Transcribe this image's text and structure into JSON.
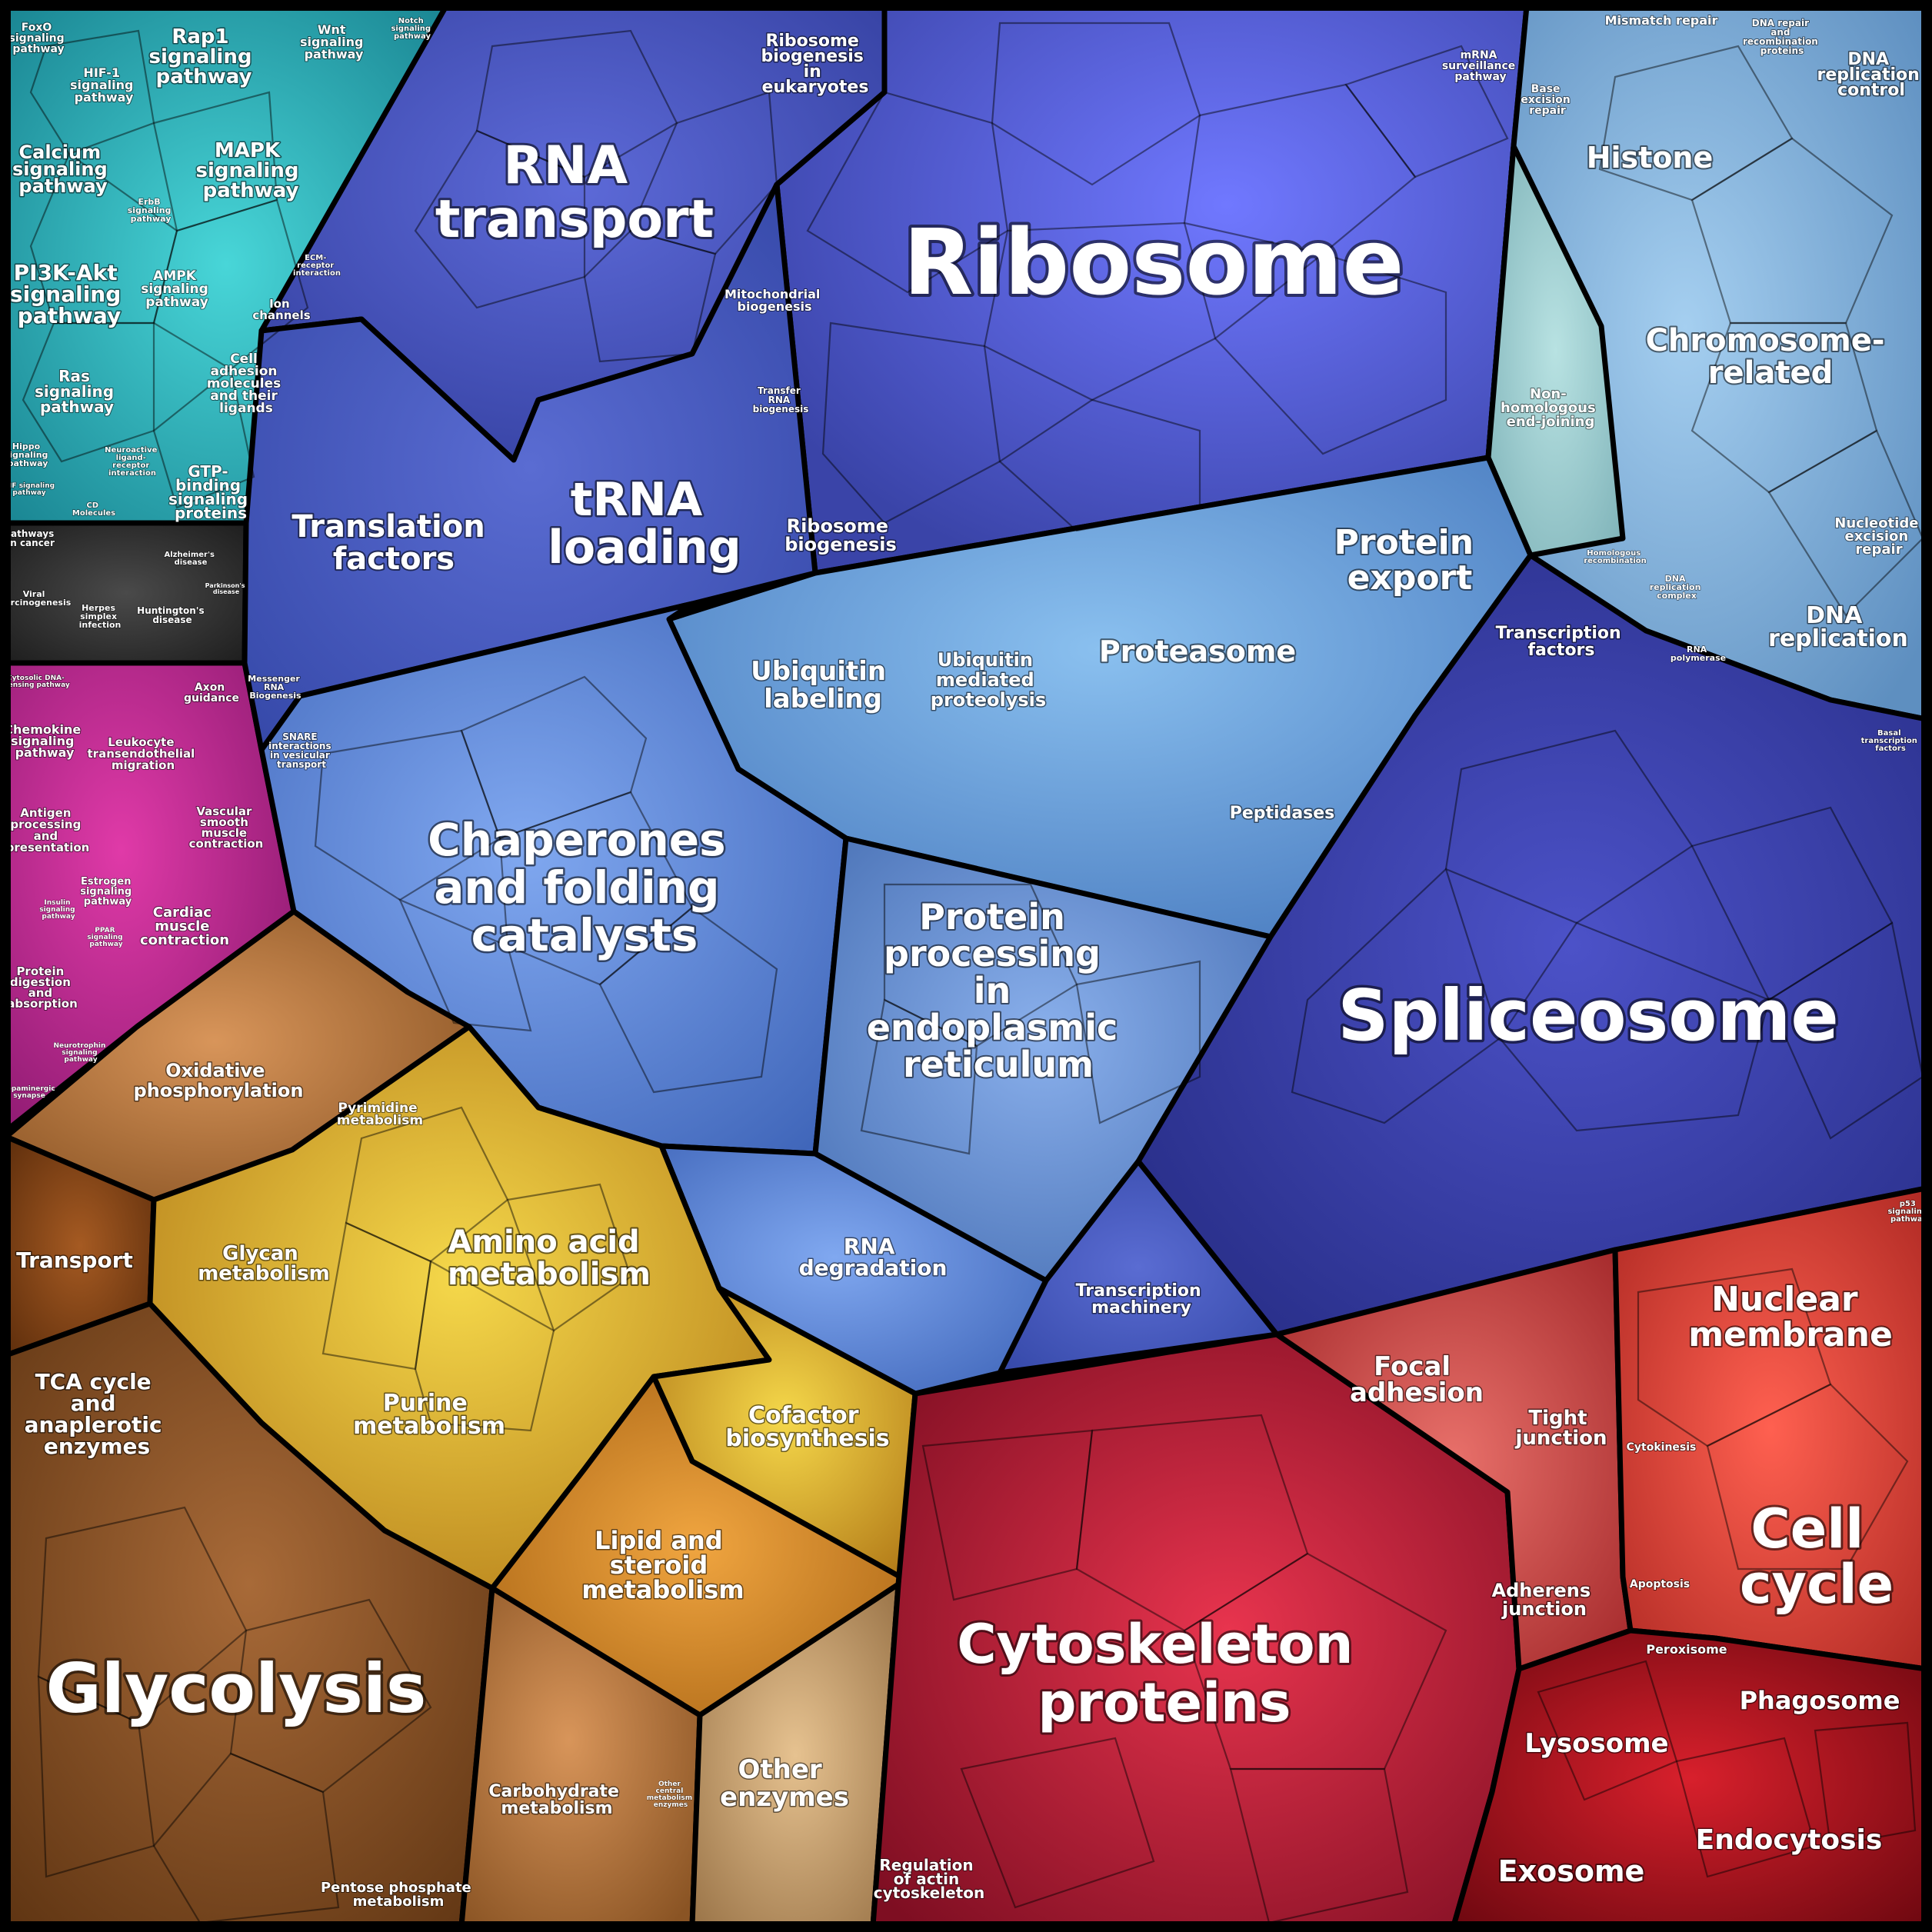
{
  "labels": {
    "ribosome": "Ribosome",
    "rna_transport": [
      "RNA",
      "transport"
    ],
    "ribosome_biogenesis_euk": [
      "Ribosome",
      "biogenesis",
      "in",
      "eukaryotes"
    ],
    "mitochondrial_biogenesis": [
      "Mitochondrial",
      "biogenesis"
    ],
    "transfer_rna_biogenesis": [
      "Transfer",
      "RNA",
      "biogenesis"
    ],
    "mrna_surveillance": [
      "mRNA",
      "surveillance",
      "pathway"
    ],
    "translation_factors": [
      "Translation",
      "factors"
    ],
    "trna_loading": [
      "tRNA",
      "loading"
    ],
    "ribosome_biogenesis": [
      "Ribosome",
      "biogenesis"
    ],
    "messenger_rna_biogenesis": [
      "Messenger",
      "RNA",
      "Biogenesis"
    ],
    "histone": "Histone",
    "mismatch_repair": "Mismatch repair",
    "dna_repair_recombination": [
      "DNA repair",
      "and",
      "recombination",
      "proteins"
    ],
    "dna_replication_control": [
      "DNA",
      "replication",
      "control"
    ],
    "base_excision_repair": [
      "Base",
      "excision",
      "repair"
    ],
    "chromosome_related": [
      "Chromosome-",
      "related"
    ],
    "non_homologous": [
      "Non-",
      "homologous",
      "end-joining"
    ],
    "nucleotide_excision_repair": [
      "Nucleotide",
      "excision",
      "repair"
    ],
    "dna_replication": [
      "DNA",
      "replication"
    ],
    "homologous_recombination": [
      "Homologous",
      "recombination"
    ],
    "dna_replication_complex": [
      "DNA",
      "replication",
      "complex"
    ],
    "protein_export": [
      "Protein",
      "export"
    ],
    "proteasome": "Proteasome",
    "ubiquitin_labeling": [
      "Ubiquitin",
      "labeling"
    ],
    "ubiquitin_mediated": [
      "Ubiquitin",
      "mediated",
      "proteolysis"
    ],
    "peptidases": "Peptidases",
    "chaperones": [
      "Chaperones",
      "and folding",
      "catalysts"
    ],
    "protein_processing_er": [
      "Protein",
      "processing",
      "in",
      "endoplasmic",
      "reticulum"
    ],
    "snare": [
      "SNARE",
      "interactions",
      "in vesicular",
      "transport"
    ],
    "rna_degradation": [
      "RNA",
      "degradation"
    ],
    "transcription_factors": [
      "Transcription",
      "factors"
    ],
    "rna_polymerase": [
      "RNA",
      "polymerase"
    ],
    "basal_transcription_factors": [
      "Basal",
      "transcription",
      "factors"
    ],
    "spliceosome": "Spliceosome",
    "transcription_machinery": [
      "Transcription",
      "machinery"
    ],
    "foxo": [
      "FoxO",
      "signaling",
      "pathway"
    ],
    "rap1": [
      "Rap1",
      "signaling",
      "pathway"
    ],
    "wnt": [
      "Wnt",
      "signaling",
      "pathway"
    ],
    "notch": [
      "Notch",
      "signaling",
      "pathway"
    ],
    "hif1": [
      "HIF-1",
      "signaling",
      "pathway"
    ],
    "calcium": [
      "Calcium",
      "signaling",
      "pathway"
    ],
    "mapk": [
      "MAPK",
      "signaling",
      "pathway"
    ],
    "erbb": [
      "ErbB",
      "signaling",
      "pathway"
    ],
    "pi3k": [
      "PI3K-Akt",
      "signaling",
      "pathway"
    ],
    "ampk": [
      "AMPK",
      "signaling",
      "pathway"
    ],
    "ecm_receptor": [
      "ECM-",
      "receptor",
      "interaction"
    ],
    "ion_channels": [
      "Ion",
      "channels"
    ],
    "ras": [
      "Ras",
      "signaling",
      "pathway"
    ],
    "cell_adhesion_molecules": [
      "Cell",
      "adhesion",
      "molecules",
      "and their",
      "ligands"
    ],
    "neuroactive": [
      "Neuroactive",
      "ligand-",
      "receptor",
      "interaction"
    ],
    "hippo": [
      "Hippo",
      "signaling",
      "pathway"
    ],
    "tnf": [
      "TNF signaling",
      "pathway"
    ],
    "cd_molecules": [
      "CD",
      "Molecules"
    ],
    "gtp_binding": [
      "GTP-",
      "binding",
      "signaling",
      "proteins"
    ],
    "pathways_in_cancer": [
      "Pathways",
      "in cancer"
    ],
    "alzheimers": [
      "Alzheimer's",
      "disease"
    ],
    "parkinsons": [
      "Parkinson's",
      "disease"
    ],
    "viral_carcinogenesis": [
      "Viral",
      "carcinogenesis"
    ],
    "herpes": [
      "Herpes",
      "simplex",
      "infection"
    ],
    "huntingtons": [
      "Huntington's",
      "disease"
    ],
    "cytosolic_dna": [
      "Cytosolic DNA-",
      "sensing pathway"
    ],
    "axon_guidance": [
      "Axon",
      "guidance"
    ],
    "chemokine": [
      "Chemokine",
      "signaling",
      "pathway"
    ],
    "leukocyte": [
      "Leukocyte",
      "transendothelial",
      "migration"
    ],
    "antigen": [
      "Antigen",
      "processing",
      "and",
      "presentation"
    ],
    "vascular": [
      "Vascular",
      "smooth",
      "muscle",
      "contraction"
    ],
    "estrogen": [
      "Estrogen",
      "signaling",
      "pathway"
    ],
    "insulin": [
      "Insulin",
      "signaling",
      "pathway"
    ],
    "cardiac": [
      "Cardiac",
      "muscle",
      "contraction"
    ],
    "ppar": [
      "PPAR",
      "signaling",
      "pathway"
    ],
    "protein_digestion": [
      "Protein",
      "digestion",
      "and",
      "absorption"
    ],
    "neurotrophin": [
      "Neurotrophin",
      "signaling",
      "pathway"
    ],
    "dopaminergic": [
      "Dopaminergic",
      "synapse"
    ],
    "oxidative_phosphorylation": [
      "Oxidative",
      "phosphorylation"
    ],
    "pyrimidine": [
      "Pyrimidine",
      "metabolism"
    ],
    "transport": "Transport",
    "glycan": [
      "Glycan",
      "metabolism"
    ],
    "amino_acid": [
      "Amino acid",
      "metabolism"
    ],
    "tca": [
      "TCA cycle",
      "and",
      "anaplerotic",
      "enzymes"
    ],
    "purine": [
      "Purine",
      "metabolism"
    ],
    "cofactor": [
      "Cofactor",
      "biosynthesis"
    ],
    "lipid": [
      "Lipid and",
      "steroid",
      "metabolism"
    ],
    "glycolysis": "Glycolysis",
    "carbohydrate": [
      "Carbohydrate",
      "metabolism"
    ],
    "other_central": [
      "Other",
      "central",
      "metabolism",
      "enzymes"
    ],
    "other_enzymes": [
      "Other",
      "enzymes"
    ],
    "pentose": [
      "Pentose phosphate",
      "metabolism"
    ],
    "focal_adhesion": [
      "Focal",
      "adhesion"
    ],
    "tight_junction": [
      "Tight",
      "junction"
    ],
    "nuclear_membrane": [
      "Nuclear",
      "membrane"
    ],
    "cytokinesis": "Cytokinesis",
    "cell_cycle": [
      "Cell",
      "cycle"
    ],
    "adherens_junction": [
      "Adherens",
      "junction"
    ],
    "apoptosis": "Apoptosis",
    "peroxisome": "Peroxisome",
    "phagosome": "Phagosome",
    "lysosome": "Lysosome",
    "cytoskeleton": [
      "Cytoskeleton",
      "proteins"
    ],
    "endocytosis": "Endocytosis",
    "exosome": "Exosome",
    "regulation_actin": [
      "Regulation",
      "of actin",
      "cytoskeleton"
    ],
    "p53": [
      "p53",
      "signaling",
      "pathway"
    ]
  },
  "colors": {
    "ribosome": "#4a55c4",
    "rna_group": "#4c5ec8",
    "translation": "#4a62c8",
    "dna_group": "#7eaed8",
    "non_homologous": "#a9d4d6",
    "proteasome_group": "#5f95d8",
    "chaperones": "#5a86d8",
    "protein_processing": "#5889cf",
    "rna_degradation": "#4d7cc0",
    "spliceosome": "#3a3fa3",
    "transcription_machinery": "#4747b4",
    "signaling": "#27a8b8",
    "disease": "#333333",
    "immune": "#c02a9a",
    "oxidative": "#b3783a",
    "amino_acid": "#e0a830",
    "transport": "#8a4a18",
    "glycolysis": "#8a5224",
    "cofactor": "#d99b26",
    "lipid": "#d98a2a",
    "other_enzymes": "#c9a06c",
    "cytoskeleton": "#b51a38",
    "focal": "#c54846",
    "nuclear": "#d94838",
    "cell_cycle": "#c8303a",
    "vesicle": "#b0121c"
  }
}
